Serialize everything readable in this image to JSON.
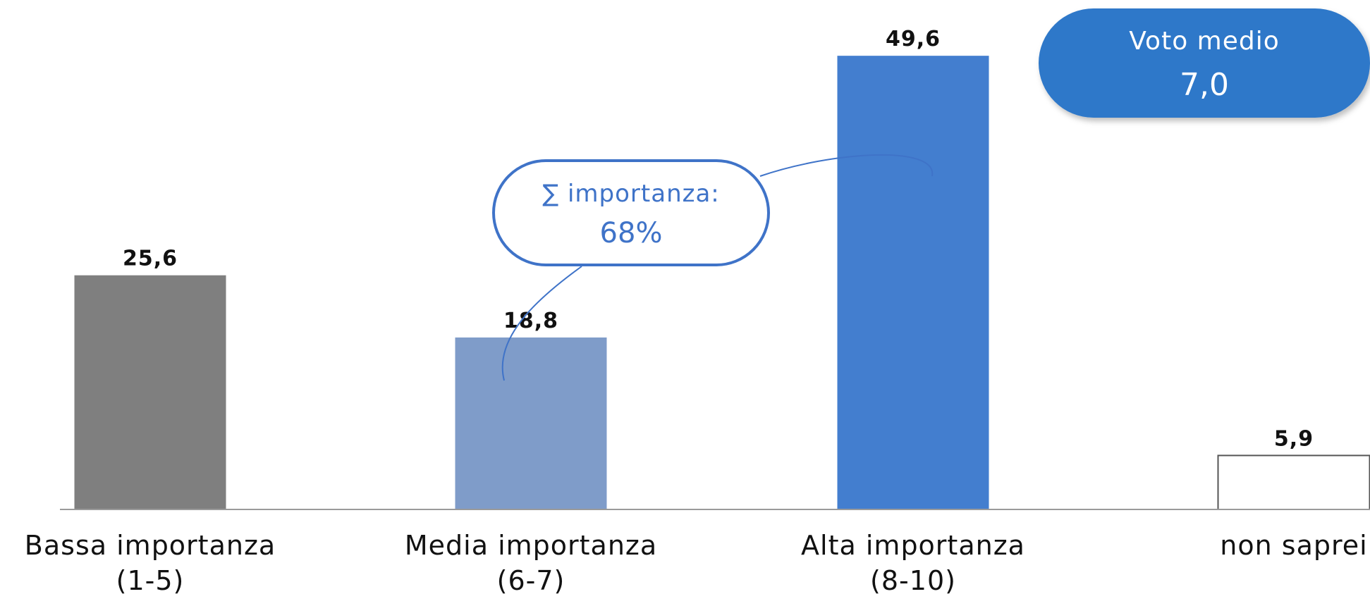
{
  "chart_data": {
    "type": "bar",
    "categories": [
      [
        "Bassa importanza",
        "(1-5)"
      ],
      [
        "Media importanza",
        "(6-7)"
      ],
      [
        "Alta importanza",
        "(8-10)"
      ],
      [
        "non saprei",
        ""
      ]
    ],
    "values": [
      25.6,
      18.8,
      49.6,
      5.9
    ],
    "value_labels": [
      "25,6",
      "18,8",
      "49,6",
      "5,9"
    ],
    "bar_colors": [
      "#7f7f7f",
      "#7f9cc9",
      "#437ecf",
      "#ffffff"
    ],
    "bar_borders": [
      "none",
      "none",
      "none",
      "#555555"
    ],
    "ylim": [
      0,
      52
    ],
    "grid": false,
    "legend": "none"
  },
  "callout": {
    "line1": "∑ importanza:",
    "line2": "68%",
    "color": "#3f73c8"
  },
  "badge": {
    "title": "Voto medio",
    "value": "7,0",
    "color": "#2f78c9"
  }
}
